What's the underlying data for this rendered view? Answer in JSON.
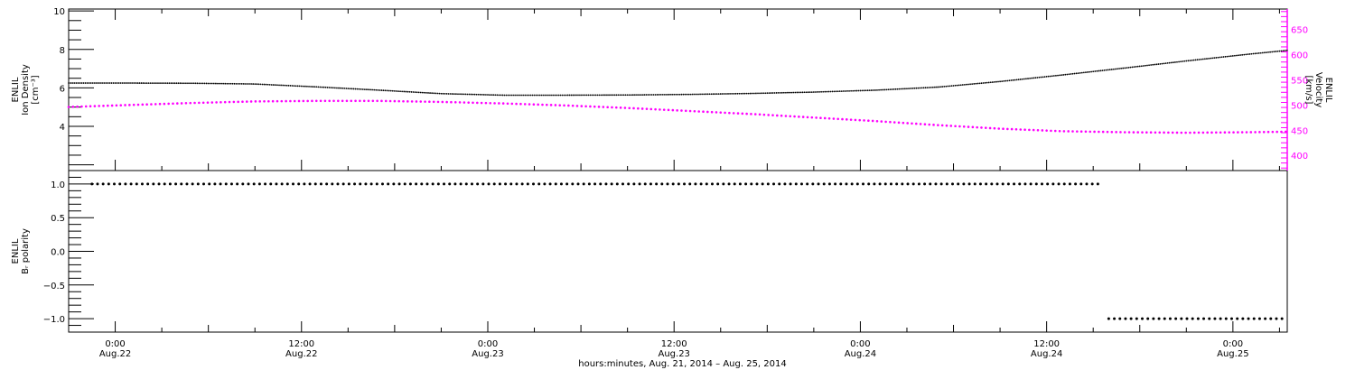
{
  "chart_data": [
    {
      "panel": "top",
      "type": "scatter",
      "x_unit": "hours since Aug.21 21:00 UT",
      "xlim": [
        0,
        78.5
      ],
      "xticks": [
        {
          "x": 3,
          "time": "0:00",
          "date": "Aug.22"
        },
        {
          "x": 15,
          "time": "12:00",
          "date": "Aug.22"
        },
        {
          "x": 27,
          "time": "0:00",
          "date": "Aug.23"
        },
        {
          "x": 39,
          "time": "12:00",
          "date": "Aug.23"
        },
        {
          "x": 51,
          "time": "0:00",
          "date": "Aug.24"
        },
        {
          "x": 63,
          "time": "12:00",
          "date": "Aug.24"
        },
        {
          "x": 75,
          "time": "0:00",
          "date": "Aug.25"
        }
      ],
      "left_axis": {
        "label_lines": [
          "ENLIL",
          "Ion Density",
          "[cm⁻³]"
        ],
        "ylim": [
          1.7,
          10.1
        ],
        "ticks": [
          4,
          6,
          8,
          10
        ],
        "color": "#000000"
      },
      "right_axis": {
        "label_lines": [
          "ENLIL",
          "Velocity",
          "[km/s]"
        ],
        "ylim": [
          370,
          690
        ],
        "ticks": [
          400,
          450,
          500,
          550,
          600,
          650
        ],
        "color": "#ff00ff"
      },
      "series": [
        {
          "axis": "left",
          "color": "#000000",
          "points": [
            [
              0,
              6.25
            ],
            [
              4,
              6.25
            ],
            [
              8,
              6.24
            ],
            [
              12,
              6.2
            ],
            [
              16,
              6.05
            ],
            [
              20,
              5.88
            ],
            [
              24,
              5.7
            ],
            [
              28,
              5.62
            ],
            [
              32,
              5.62
            ],
            [
              36,
              5.63
            ],
            [
              40,
              5.66
            ],
            [
              44,
              5.71
            ],
            [
              48,
              5.78
            ],
            [
              52,
              5.88
            ],
            [
              56,
              6.04
            ],
            [
              60,
              6.33
            ],
            [
              64,
              6.67
            ],
            [
              68,
              7.03
            ],
            [
              72,
              7.4
            ],
            [
              76,
              7.75
            ],
            [
              78.5,
              7.95
            ]
          ]
        },
        {
          "axis": "right",
          "color": "#ff00ff",
          "points": [
            [
              0,
              496
            ],
            [
              4,
              500
            ],
            [
              8,
              504
            ],
            [
              12,
              507
            ],
            [
              16,
              508
            ],
            [
              20,
              508
            ],
            [
              24,
              506
            ],
            [
              28,
              503
            ],
            [
              32,
              499
            ],
            [
              36,
              494
            ],
            [
              40,
              488
            ],
            [
              44,
              482
            ],
            [
              48,
              475
            ],
            [
              52,
              468
            ],
            [
              56,
              460
            ],
            [
              60,
              453
            ],
            [
              64,
              448
            ],
            [
              68,
              446
            ],
            [
              72,
              445
            ],
            [
              76,
              446
            ],
            [
              78.5,
              447
            ]
          ]
        }
      ]
    },
    {
      "panel": "bottom",
      "type": "scatter",
      "x_unit": "hours since Aug.21 21:00 UT",
      "xlabel": "hours:minutes, Aug. 21, 2014 – Aug. 25, 2014",
      "left_axis": {
        "label_lines": [
          "ENLIL",
          "Bᵣ polarity"
        ],
        "ylim": [
          -1.2,
          1.2
        ],
        "ticks": [
          1.0,
          0.5,
          0.0,
          -0.5,
          -1.0
        ],
        "tick_labels": [
          "1.0",
          "0.5",
          "0.0",
          "−0.5",
          "−1.0"
        ]
      },
      "series": [
        {
          "color": "#000000",
          "y": 1.0,
          "x_range": [
            1.5,
            66.5
          ]
        },
        {
          "color": "#000000",
          "y": -1.0,
          "x_range": [
            67,
            78.5
          ]
        }
      ]
    }
  ]
}
